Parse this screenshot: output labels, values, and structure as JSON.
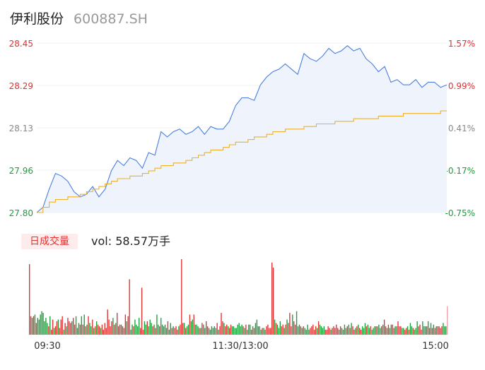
{
  "header": {
    "name": "伊利股份",
    "code": "600887.SH"
  },
  "volume_panel": {
    "tab_label": "日成交量",
    "vol_prefix": "vol: ",
    "vol_value": "58.57万手"
  },
  "colors": {
    "up": "#e03030",
    "down": "#1a9e3a",
    "price_line": "#4a7fe0",
    "avg_line": "#f0b028",
    "area_fill": "#eef3fc"
  },
  "chart_data": [
    {
      "type": "line",
      "title": "",
      "y_axis_left": {
        "ticks": [
          "28.45",
          "28.29",
          "28.13",
          "27.96",
          "27.80"
        ],
        "ylim": [
          27.8,
          28.45
        ]
      },
      "y_axis_right": {
        "ticks": [
          "1.57%",
          "0.99%",
          "0.41%",
          "-0.17%",
          "-0.75%"
        ]
      },
      "x_ticks": [
        "09:30",
        "11:30/13:00",
        "15:00"
      ],
      "series": [
        {
          "name": "",
          "values": [
            27.8,
            27.82,
            27.89,
            27.95,
            27.94,
            27.92,
            27.88,
            27.86,
            27.87,
            27.9,
            27.86,
            27.89,
            27.96,
            28.0,
            27.98,
            28.01,
            28.0,
            27.97,
            28.03,
            28.02,
            28.11,
            28.09,
            28.11,
            28.12,
            28.1,
            28.11,
            28.13,
            28.1,
            28.13,
            28.12,
            28.12,
            28.15,
            28.21,
            28.24,
            28.24,
            28.23,
            28.29,
            28.32,
            28.34,
            28.35,
            28.37,
            28.35,
            28.33,
            28.41,
            28.39,
            28.38,
            28.4,
            28.43,
            28.41,
            28.42,
            28.44,
            28.42,
            28.43,
            28.39,
            28.37,
            28.34,
            28.36,
            28.3,
            28.31,
            28.29,
            28.29,
            28.31,
            28.28,
            28.3,
            28.3,
            28.28,
            28.29
          ]
        },
        {
          "name": "",
          "values": [
            27.8,
            27.82,
            27.84,
            27.85,
            27.85,
            27.86,
            27.86,
            27.87,
            27.88,
            27.89,
            27.9,
            27.91,
            27.92,
            27.93,
            27.93,
            27.94,
            27.94,
            27.95,
            27.96,
            27.97,
            27.98,
            27.98,
            27.99,
            27.99,
            28.0,
            28.01,
            28.02,
            28.03,
            28.04,
            28.04,
            28.05,
            28.06,
            28.07,
            28.07,
            28.08,
            28.09,
            28.09,
            28.1,
            28.11,
            28.11,
            28.12,
            28.12,
            28.12,
            28.13,
            28.13,
            28.14,
            28.14,
            28.14,
            28.15,
            28.15,
            28.15,
            28.16,
            28.16,
            28.16,
            28.16,
            28.17,
            28.17,
            28.17,
            28.17,
            28.18,
            28.18,
            28.18,
            28.18,
            28.18,
            28.18,
            28.19,
            28.19
          ]
        }
      ]
    },
    {
      "type": "bar",
      "title": "",
      "values": [
        42,
        11,
        10,
        11,
        12,
        7,
        10,
        9,
        12,
        14,
        13,
        8,
        10,
        7,
        5,
        11,
        3,
        9,
        4,
        5,
        8,
        9,
        4,
        9,
        11,
        3,
        7,
        5,
        10,
        8,
        7,
        8,
        10,
        6,
        11,
        4,
        7,
        6,
        11,
        6,
        12,
        5,
        6,
        11,
        7,
        5,
        9,
        4,
        5,
        8,
        6,
        5,
        4,
        6,
        3,
        7,
        4,
        15,
        9,
        5,
        8,
        10,
        6,
        7,
        13,
        5,
        6,
        6,
        5,
        4,
        12,
        8,
        11,
        33,
        3,
        6,
        5,
        9,
        6,
        5,
        10,
        4,
        28,
        3,
        8,
        6,
        8,
        5,
        9,
        7,
        5,
        6,
        4,
        12,
        6,
        5,
        10,
        6,
        5,
        6,
        4,
        8,
        3,
        7,
        4,
        5,
        4,
        5,
        3,
        5,
        6,
        45,
        7,
        7,
        4,
        5,
        6,
        12,
        8,
        9,
        12,
        6,
        6,
        5,
        4,
        4,
        7,
        6,
        4,
        8,
        5,
        4,
        3,
        5,
        4,
        5,
        4,
        7,
        3,
        5,
        13,
        8,
        7,
        5,
        6,
        5,
        4,
        6,
        5,
        5,
        4,
        4,
        6,
        7,
        5,
        6,
        5,
        4,
        6,
        3,
        6,
        6,
        3,
        5,
        4,
        7,
        9,
        5,
        5,
        3,
        4,
        4,
        3,
        5,
        6,
        4,
        4,
        43,
        40,
        9,
        7,
        6,
        4,
        8,
        5,
        6,
        4,
        6,
        9,
        7,
        13,
        5,
        12,
        8,
        6,
        14,
        5,
        6,
        5,
        4,
        5,
        4,
        3,
        6,
        3,
        4,
        5,
        6,
        3,
        5,
        4,
        8,
        6,
        5,
        4,
        5,
        3,
        3,
        5,
        4,
        3,
        4,
        5,
        4,
        6,
        4,
        3,
        5,
        4,
        3,
        6,
        4,
        5,
        6,
        4,
        7,
        5,
        3,
        4,
        5,
        6,
        4,
        3,
        5,
        4,
        7,
        5,
        6,
        4,
        5,
        3,
        4,
        5,
        5,
        5,
        6,
        4,
        5,
        6,
        9,
        5,
        4,
        6,
        4,
        6,
        6,
        4,
        5,
        5,
        8,
        5,
        5,
        4,
        4,
        3,
        4,
        5,
        3,
        7,
        5,
        4,
        3,
        4,
        8,
        5,
        6,
        3,
        8,
        5,
        5,
        5,
        8,
        4,
        7,
        4,
        6,
        4,
        5,
        5,
        5,
        4,
        5,
        7,
        5,
        5,
        17
      ],
      "up": [
        true,
        true,
        false,
        true,
        false,
        true,
        false,
        false,
        false,
        false,
        false,
        false,
        false,
        false,
        true,
        false,
        true,
        true,
        false,
        true,
        true,
        false,
        true,
        true,
        true,
        false,
        true,
        false,
        true,
        true,
        true,
        false,
        true,
        true,
        false,
        false,
        false,
        true,
        false,
        true,
        false,
        true,
        false,
        true,
        false,
        false,
        true,
        false,
        true,
        false,
        true,
        true,
        false,
        true,
        true,
        true,
        true,
        true,
        true,
        true,
        true,
        false,
        true,
        false,
        true,
        true,
        true,
        false,
        true,
        true,
        true,
        false,
        true,
        true,
        false,
        false,
        true,
        false,
        false,
        false,
        false,
        true,
        true,
        true,
        false,
        false,
        true,
        false,
        false,
        false,
        true,
        false,
        true,
        false,
        false,
        true,
        false,
        false,
        false,
        false,
        false,
        true,
        false,
        false,
        true,
        false,
        true,
        true,
        true,
        false,
        true,
        true,
        true,
        false,
        true,
        false,
        false,
        true,
        false,
        false,
        true,
        false,
        false,
        false,
        true,
        false,
        true,
        false,
        false,
        true,
        true,
        false,
        false,
        false,
        false,
        false,
        false,
        true,
        false,
        true,
        true,
        true,
        false,
        true,
        true,
        false,
        true,
        true,
        false,
        false,
        false,
        false,
        false,
        false,
        false,
        false,
        true,
        false,
        true,
        false,
        false,
        false,
        true,
        false,
        true,
        false,
        false,
        false,
        false,
        false,
        true,
        false,
        false,
        true,
        true,
        true,
        true,
        true,
        true,
        false,
        true,
        false,
        false,
        false,
        true,
        true,
        false,
        true,
        false,
        true,
        true,
        true,
        false,
        true,
        true,
        false,
        false,
        false,
        true,
        false,
        true,
        false,
        false,
        false,
        false,
        true,
        true,
        true,
        true,
        true,
        false,
        true,
        false,
        false,
        false,
        false,
        true,
        true,
        true,
        true,
        false,
        true,
        true,
        true,
        true,
        true,
        false,
        true,
        false,
        false,
        false,
        false,
        true,
        false,
        true,
        false,
        true,
        true,
        false,
        true,
        false,
        true,
        true,
        false,
        false,
        false,
        true,
        false,
        false,
        true,
        false,
        false,
        false,
        true,
        false,
        false,
        false,
        true,
        false,
        true,
        true,
        false,
        true,
        false,
        false,
        true,
        true,
        false,
        false,
        true,
        true,
        true,
        false,
        false,
        true,
        true,
        false,
        true,
        false,
        false,
        true,
        false,
        false,
        false,
        true,
        true,
        true,
        false,
        false,
        false,
        true,
        false,
        true,
        false,
        true,
        false,
        true,
        false,
        true,
        true,
        true,
        true
      ]
    }
  ]
}
